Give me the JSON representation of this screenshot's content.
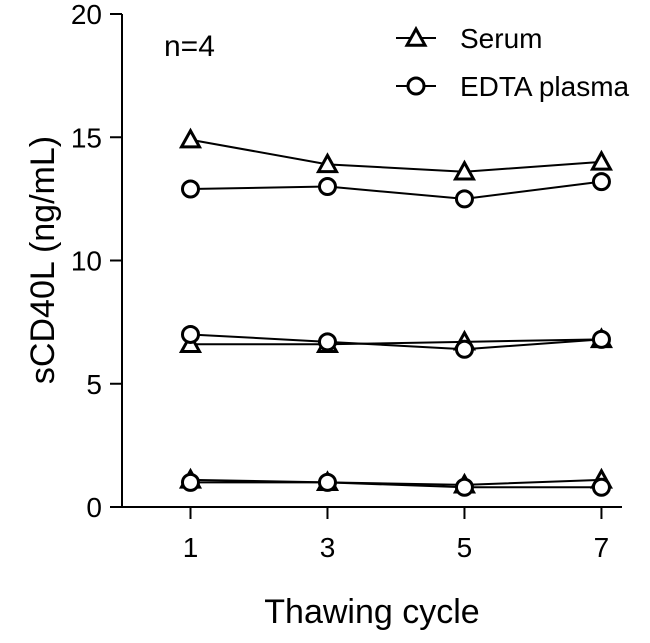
{
  "chart_data": {
    "type": "line",
    "title": "",
    "annotation": "n=4",
    "xlabel": "Thawing cycle",
    "ylabel": "sCD40L (ng/mL)",
    "x": [
      1,
      3,
      5,
      7
    ],
    "xlim": [
      0,
      7.3
    ],
    "ylim": [
      0,
      20
    ],
    "yticks": [
      0,
      5,
      10,
      15,
      20
    ],
    "xticks": [
      1,
      3,
      5,
      7
    ],
    "legend_position": "top-right",
    "legend": [
      {
        "name": "Serum",
        "marker": "triangle"
      },
      {
        "name": "EDTA plasma",
        "marker": "circle"
      }
    ],
    "series": [
      {
        "name": "Serum",
        "group": "Serum",
        "marker": "triangle",
        "values": [
          14.9,
          13.9,
          13.6,
          14.0
        ]
      },
      {
        "name": "EDTA plasma",
        "group": "EDTA plasma",
        "marker": "circle",
        "values": [
          12.9,
          13.0,
          12.5,
          13.2
        ]
      },
      {
        "name": "Serum",
        "group": "Serum",
        "marker": "triangle",
        "values": [
          6.6,
          6.6,
          6.7,
          6.8
        ]
      },
      {
        "name": "EDTA plasma",
        "group": "EDTA plasma",
        "marker": "circle",
        "values": [
          7.0,
          6.7,
          6.4,
          6.8
        ]
      },
      {
        "name": "Serum",
        "group": "Serum",
        "marker": "triangle",
        "values": [
          1.1,
          1.0,
          0.9,
          1.1
        ]
      },
      {
        "name": "EDTA plasma",
        "group": "EDTA plasma",
        "marker": "circle",
        "values": [
          1.0,
          1.0,
          0.8,
          0.8
        ]
      }
    ]
  }
}
